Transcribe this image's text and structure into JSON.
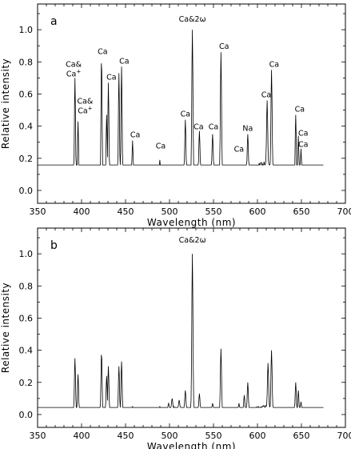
{
  "chart_data": [
    {
      "type": "line",
      "panel_label": "a",
      "xlabel": "Wavelength (nm)",
      "ylabel": "Relative intensity",
      "xlim": [
        350,
        700
      ],
      "ylim": [
        -0.08,
        1.16
      ],
      "x_ticks": [
        350,
        400,
        450,
        500,
        550,
        600,
        650,
        700
      ],
      "y_ticks": [
        0.0,
        0.2,
        0.4,
        0.6,
        0.8,
        1.0
      ],
      "y_tick_labels": [
        "0.0",
        "0.2",
        "0.4",
        "0.6",
        "0.8",
        "1.0"
      ],
      "grid": false,
      "peaks": [
        {
          "x": 392.5,
          "y": 0.7
        },
        {
          "x": 396,
          "y": 0.43
        },
        {
          "x": 422.7,
          "y": 0.83
        },
        {
          "x": 428.5,
          "y": 0.47
        },
        {
          "x": 430.5,
          "y": 0.67
        },
        {
          "x": 442.5,
          "y": 0.73
        },
        {
          "x": 445.5,
          "y": 0.77
        },
        {
          "x": 458,
          "y": 0.31
        },
        {
          "x": 489,
          "y": 0.19
        },
        {
          "x": 518,
          "y": 0.44
        },
        {
          "x": 526,
          "y": 1.0
        },
        {
          "x": 534,
          "y": 0.37
        },
        {
          "x": 549,
          "y": 0.35
        },
        {
          "x": 558.5,
          "y": 0.86
        },
        {
          "x": 589,
          "y": 0.35
        },
        {
          "x": 611,
          "y": 0.56
        },
        {
          "x": 616,
          "y": 0.75
        },
        {
          "x": 643.5,
          "y": 0.47
        },
        {
          "x": 646.5,
          "y": 0.34
        },
        {
          "x": 649.5,
          "y": 0.26
        }
      ],
      "continuum": [
        {
          "x": 350,
          "y": 0.0
        },
        {
          "x": 380,
          "y": 0.0
        },
        {
          "x": 405,
          "y": 0.01
        },
        {
          "x": 440,
          "y": 0.02
        },
        {
          "x": 460,
          "y": 0.03
        },
        {
          "x": 470,
          "y": 0.05
        },
        {
          "x": 480,
          "y": 0.06
        },
        {
          "x": 490,
          "y": 0.07
        },
        {
          "x": 500,
          "y": 0.09
        },
        {
          "x": 510,
          "y": 0.08
        },
        {
          "x": 520,
          "y": 0.1
        },
        {
          "x": 530,
          "y": 0.1
        },
        {
          "x": 540,
          "y": 0.11
        },
        {
          "x": 550,
          "y": 0.12
        },
        {
          "x": 560,
          "y": 0.11
        },
        {
          "x": 570,
          "y": 0.1
        },
        {
          "x": 580,
          "y": 0.11
        },
        {
          "x": 595,
          "y": 0.12
        },
        {
          "x": 605,
          "y": 0.15
        },
        {
          "x": 612,
          "y": 0.16
        },
        {
          "x": 620,
          "y": 0.1
        },
        {
          "x": 630,
          "y": 0.04
        },
        {
          "x": 640,
          "y": 0.03
        },
        {
          "x": 655,
          "y": 0.01
        },
        {
          "x": 665,
          "y": 0.0
        },
        {
          "x": 700,
          "y": 0.0
        }
      ],
      "annotations": [
        {
          "lines": [
            "Ca&",
            "Ca+"
          ],
          "x": 391,
          "y": 0.77,
          "sup_last": true
        },
        {
          "lines": [
            "Ca&",
            "Ca+"
          ],
          "x": 404,
          "y": 0.54,
          "sup_last": true
        },
        {
          "lines": [
            "Ca"
          ],
          "x": 424,
          "y": 0.85
        },
        {
          "lines": [
            "Ca"
          ],
          "x": 434,
          "y": 0.69
        },
        {
          "lines": [
            "Ca"
          ],
          "x": 448.5,
          "y": 0.79
        },
        {
          "lines": [
            "Ca"
          ],
          "x": 461,
          "y": 0.33
        },
        {
          "lines": [
            "Ca"
          ],
          "x": 490,
          "y": 0.26
        },
        {
          "lines": [
            "Ca&2ω"
          ],
          "x": 526,
          "y": 1.05
        },
        {
          "lines": [
            "Ca"
          ],
          "x": 518,
          "y": 0.46
        },
        {
          "lines": [
            "Ca"
          ],
          "x": 533,
          "y": 0.38
        },
        {
          "lines": [
            "Ca"
          ],
          "x": 550,
          "y": 0.38
        },
        {
          "lines": [
            "Ca"
          ],
          "x": 562,
          "y": 0.88
        },
        {
          "lines": [
            "Ca"
          ],
          "x": 579,
          "y": 0.24
        },
        {
          "lines": [
            "Na"
          ],
          "x": 589,
          "y": 0.37
        },
        {
          "lines": [
            "Ca"
          ],
          "x": 610,
          "y": 0.58
        },
        {
          "lines": [
            "Ca"
          ],
          "x": 619,
          "y": 0.77
        },
        {
          "lines": [
            "Ca"
          ],
          "x": 648,
          "y": 0.49
        },
        {
          "lines": [
            "Ca"
          ],
          "x": 652,
          "y": 0.34
        },
        {
          "lines": [
            "Ca"
          ],
          "x": 652,
          "y": 0.27
        }
      ]
    },
    {
      "type": "line",
      "panel_label": "b",
      "xlabel": "Wavelength (nm)",
      "ylabel": "Relative intensity",
      "xlim": [
        350,
        700
      ],
      "ylim": [
        -0.08,
        1.16
      ],
      "x_ticks": [
        350,
        400,
        450,
        500,
        550,
        600,
        650,
        700
      ],
      "y_ticks": [
        0.0,
        0.2,
        0.4,
        0.6,
        0.8,
        1.0
      ],
      "y_tick_labels": [
        "0.0",
        "0.2",
        "0.4",
        "0.6",
        "0.8",
        "1.0"
      ],
      "grid": false,
      "peaks": [
        {
          "x": 392.5,
          "y": 0.35
        },
        {
          "x": 396,
          "y": 0.25
        },
        {
          "x": 422.7,
          "y": 0.39
        },
        {
          "x": 428.5,
          "y": 0.24
        },
        {
          "x": 430.5,
          "y": 0.3
        },
        {
          "x": 442.5,
          "y": 0.3
        },
        {
          "x": 445.5,
          "y": 0.33
        },
        {
          "x": 458,
          "y": 0.05
        },
        {
          "x": 475,
          "y": 0.04
        },
        {
          "x": 489,
          "y": 0.05
        },
        {
          "x": 499,
          "y": 0.07
        },
        {
          "x": 503,
          "y": 0.1
        },
        {
          "x": 511,
          "y": 0.09
        },
        {
          "x": 518,
          "y": 0.15
        },
        {
          "x": 526,
          "y": 1.0
        },
        {
          "x": 534,
          "y": 0.13
        },
        {
          "x": 549,
          "y": 0.07
        },
        {
          "x": 558.5,
          "y": 0.41
        },
        {
          "x": 579,
          "y": 0.07
        },
        {
          "x": 585,
          "y": 0.12
        },
        {
          "x": 589,
          "y": 0.2
        },
        {
          "x": 612,
          "y": 0.32
        },
        {
          "x": 616,
          "y": 0.4
        },
        {
          "x": 643.5,
          "y": 0.2
        },
        {
          "x": 646.5,
          "y": 0.15
        },
        {
          "x": 649.5,
          "y": 0.08
        }
      ],
      "continuum": [
        {
          "x": 350,
          "y": 0.0
        },
        {
          "x": 440,
          "y": 0.0
        },
        {
          "x": 470,
          "y": 0.01
        },
        {
          "x": 490,
          "y": 0.02
        },
        {
          "x": 505,
          "y": 0.04
        },
        {
          "x": 520,
          "y": 0.03
        },
        {
          "x": 540,
          "y": 0.02
        },
        {
          "x": 560,
          "y": 0.02
        },
        {
          "x": 580,
          "y": 0.01
        },
        {
          "x": 600,
          "y": 0.04
        },
        {
          "x": 610,
          "y": 0.05
        },
        {
          "x": 620,
          "y": 0.02
        },
        {
          "x": 640,
          "y": 0.01
        },
        {
          "x": 660,
          "y": 0.0
        },
        {
          "x": 700,
          "y": 0.0
        }
      ],
      "annotations": [
        {
          "lines": [
            "Ca&2ω"
          ],
          "x": 526,
          "y": 1.07
        }
      ]
    }
  ]
}
